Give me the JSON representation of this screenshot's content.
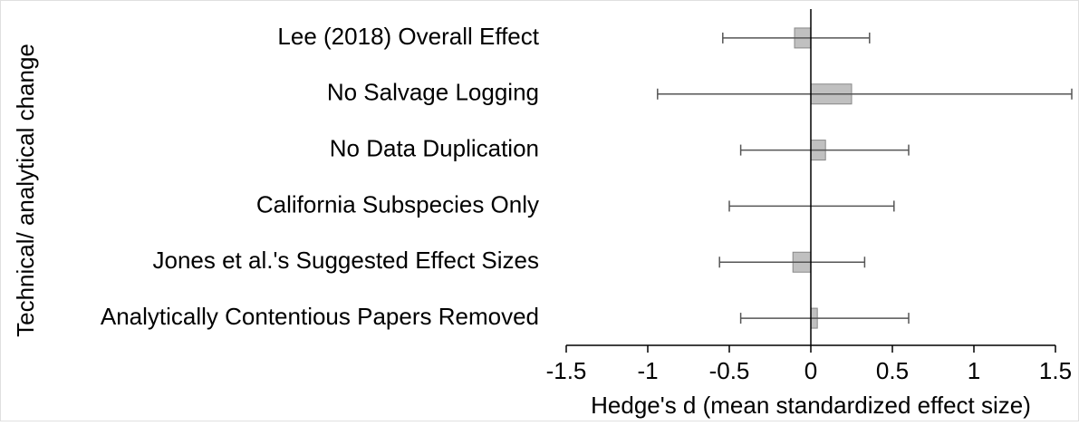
{
  "chart_data": {
    "type": "bar",
    "orientation": "horizontal",
    "xlabel": "Hedge's d (mean standardized effect size)",
    "ylabel": "Technical/ analytical change",
    "categories": [
      "Lee (2018) Overall Effect",
      "No Salvage Logging",
      "No Data Duplication",
      "California Subspecies Only",
      "Jones et al.'s Suggested Effect Sizes",
      "Analytically Contentious Papers Removed"
    ],
    "values": [
      -0.1,
      0.25,
      0.09,
      0.0,
      -0.11,
      0.04
    ],
    "ci_low": [
      -0.54,
      -0.94,
      -0.43,
      -0.5,
      -0.56,
      -0.43
    ],
    "ci_high": [
      0.36,
      1.6,
      0.6,
      0.51,
      0.33,
      0.6
    ],
    "color": "#c0c0c0",
    "xlim": [
      -1.5,
      1.5
    ],
    "xticks": [
      -1.5,
      -1,
      -0.5,
      0,
      0.5,
      1,
      1.5
    ]
  }
}
